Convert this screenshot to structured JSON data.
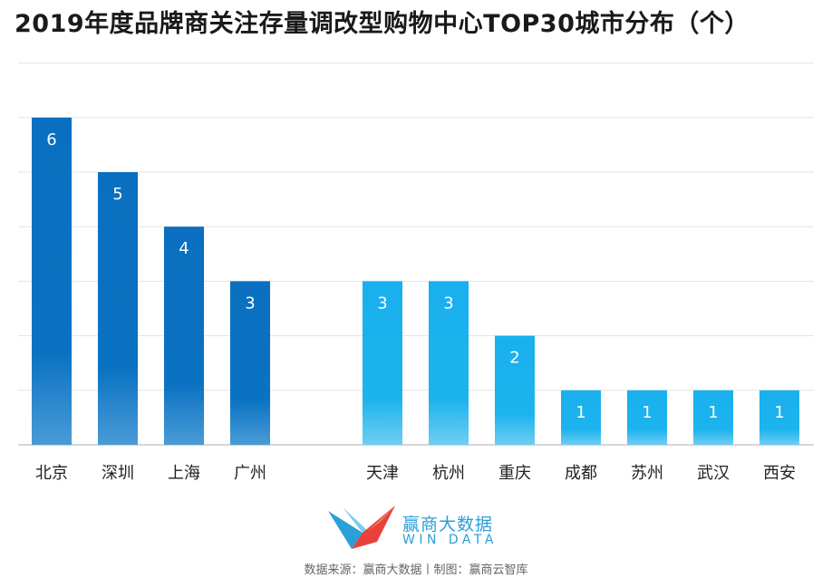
{
  "title": "2019年度品牌商关注存量调改型购物中心TOP30城市分布（个）",
  "chart_data": {
    "type": "bar",
    "categories": [
      "北京",
      "深圳",
      "上海",
      "广州",
      "天津",
      "杭州",
      "重庆",
      "成都",
      "苏州",
      "武汉",
      "西安"
    ],
    "values": [
      6,
      5,
      4,
      3,
      3,
      3,
      2,
      1,
      1,
      1,
      1
    ],
    "groups": [
      {
        "categories": [
          "北京",
          "深圳",
          "上海",
          "广州"
        ],
        "color": "#0a72c2"
      },
      {
        "categories": [
          "天津",
          "杭州",
          "重庆",
          "成都",
          "苏州",
          "武汉",
          "西安"
        ],
        "color": "#1db3ee"
      }
    ],
    "ylim": [
      0,
      7
    ],
    "grid": true,
    "data_labels": true
  },
  "brand": {
    "name": "赢商大数据",
    "sub": "WIN DATA",
    "logo_icon": "windata-logo-icon"
  },
  "footer": {
    "source": "数据来源：赢商大数据丨制图：赢商云智库"
  }
}
